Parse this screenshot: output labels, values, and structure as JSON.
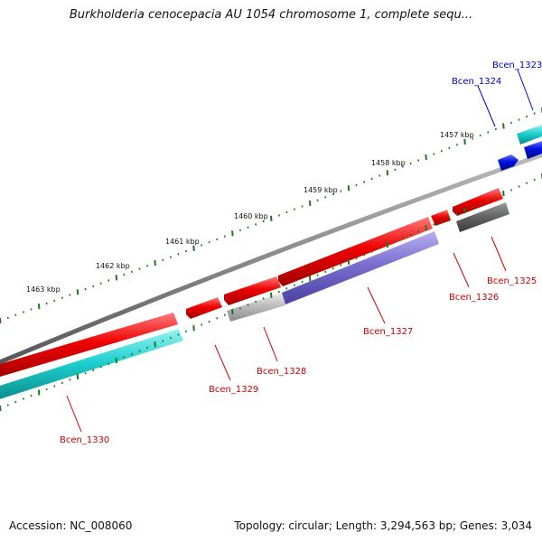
{
  "title": "Burkholderia cenocepacia AU 1054 chromosome 1, complete sequ...",
  "footer": {
    "accession": "Accession: NC_008060",
    "summary": "Topology: circular; Length: 3,294,563 bp; Genes: 3,034"
  },
  "scale_labels": [
    "1457 kbp",
    "1458 kbp",
    "1459 kbp",
    "1460 kbp",
    "1461 kbp",
    "1462 kbp",
    "1463 kbp"
  ],
  "gene_labels": [
    {
      "text": "Bcen_1323",
      "color": "#0000cc"
    },
    {
      "text": "Bcen_1324",
      "color": "#0000cc"
    },
    {
      "text": "Bcen_1325",
      "color": "#cc0000"
    },
    {
      "text": "Bcen_1326",
      "color": "#cc0000"
    },
    {
      "text": "Bcen_1327",
      "color": "#cc0000"
    },
    {
      "text": "Bcen_1328",
      "color": "#cc0000"
    },
    {
      "text": "Bcen_1329",
      "color": "#cc0000"
    },
    {
      "text": "Bcen_1330",
      "color": "#cc0000"
    }
  ],
  "colors": {
    "backbone": "#8a8a8a",
    "forward_gene": "#e00000",
    "cds_cyan": "#1fd0d0",
    "cds_purple": "#7a6fd0",
    "cds_gray": "#b8b8b8",
    "cds_dark": "#666666",
    "reverse_gene": "#0010dd",
    "tick": "#1a7a1a"
  }
}
